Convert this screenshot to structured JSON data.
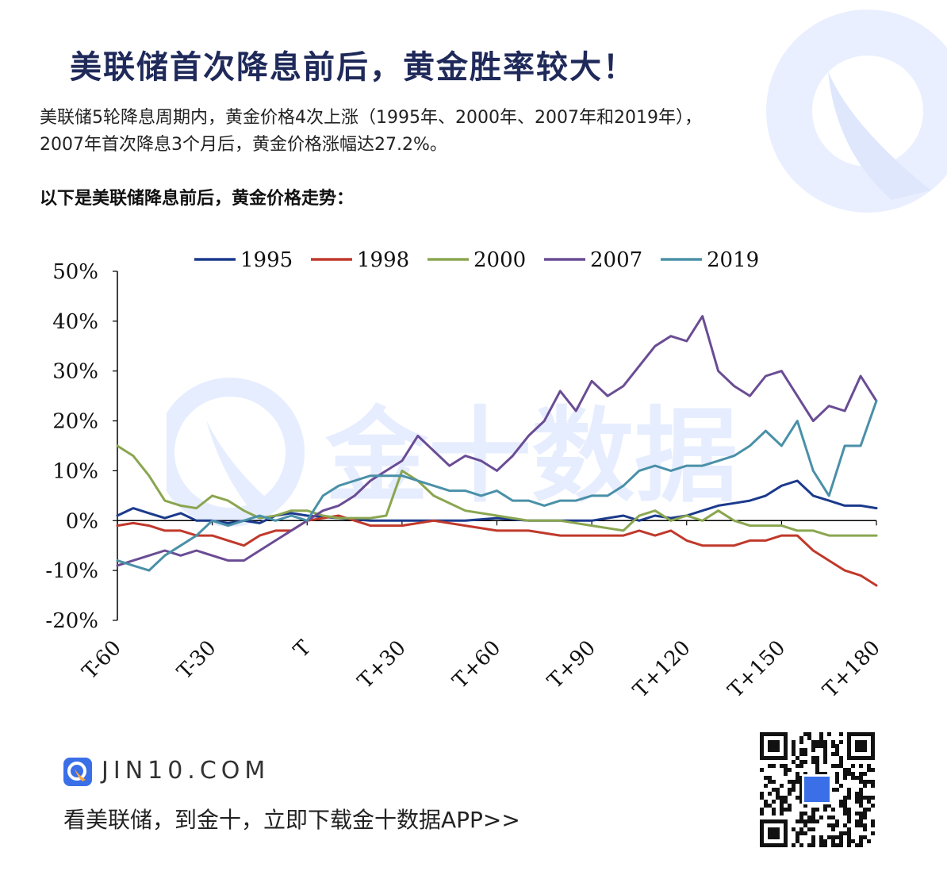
{
  "header": {
    "title": "美联储首次降息前后，黄金胜率较大！",
    "desc_line1": "美联储5轮降息周期内，黄金价格4次上涨（1995年、2000年、2007年和2019年），",
    "desc_line2": "2007年首次降息3个月后，黄金价格涨幅达27.2%。",
    "subhead": "以下是美联储降息前后，黄金价格走势："
  },
  "watermark_text": "金十数据",
  "footer": {
    "site": "JIN10.COM",
    "cta": "看美联储，到金十，立即下载金十数据APP>>"
  },
  "colors": {
    "title": "#1f2a5a",
    "brand_blue": "#3a6fe8",
    "watermark": "#e6edff"
  },
  "chart_data": {
    "type": "line",
    "title": "",
    "xlabel": "",
    "ylabel": "",
    "x_ticks": [
      "T-60",
      "T-30",
      "T",
      "T+30",
      "T+60",
      "T+90",
      "T+120",
      "T+150",
      "T+180"
    ],
    "x_tick_values": [
      -60,
      -30,
      0,
      30,
      60,
      90,
      120,
      150,
      180
    ],
    "xlim": [
      -60,
      180
    ],
    "ylim": [
      -20,
      50
    ],
    "y_ticks": [
      "50%",
      "40%",
      "30%",
      "20%",
      "10%",
      "0%",
      "-10%",
      "-20%"
    ],
    "y_tick_values": [
      50,
      40,
      30,
      20,
      10,
      0,
      -10,
      -20
    ],
    "legend_position": "top",
    "grid": false,
    "series": [
      {
        "name": "1995",
        "color": "#1b3a8c",
        "x": [
          -60,
          -55,
          -50,
          -45,
          -40,
          -35,
          -30,
          -25,
          -20,
          -15,
          -10,
          -5,
          0,
          10,
          20,
          30,
          40,
          50,
          60,
          70,
          80,
          90,
          100,
          105,
          110,
          115,
          120,
          125,
          130,
          135,
          140,
          145,
          150,
          155,
          160,
          165,
          170,
          175,
          180
        ],
        "y": [
          1,
          2.5,
          1.5,
          0.5,
          1.5,
          0,
          0,
          -0.5,
          0,
          -0.5,
          1,
          1.5,
          1,
          0.5,
          0,
          0,
          0,
          0,
          0.5,
          0,
          0,
          0,
          1,
          0,
          1,
          0.5,
          1,
          2,
          3,
          3.5,
          4,
          5,
          7,
          8,
          5,
          4,
          3,
          3,
          2.5
        ]
      },
      {
        "name": "1998",
        "color": "#c0392b",
        "x": [
          -60,
          -55,
          -50,
          -45,
          -40,
          -35,
          -30,
          -25,
          -20,
          -15,
          -10,
          -5,
          0,
          5,
          10,
          20,
          30,
          40,
          50,
          60,
          70,
          80,
          90,
          100,
          105,
          110,
          115,
          120,
          125,
          130,
          135,
          140,
          145,
          150,
          155,
          160,
          165,
          170,
          175,
          180
        ],
        "y": [
          -1,
          -0.5,
          -1,
          -2,
          -2,
          -3,
          -3,
          -4,
          -5,
          -3,
          -2,
          -2,
          0,
          0.5,
          1,
          -1,
          -1,
          0,
          -1,
          -2,
          -2,
          -3,
          -3,
          -3,
          -2,
          -3,
          -2,
          -4,
          -5,
          -5,
          -5,
          -4,
          -4,
          -3,
          -3,
          -6,
          -8,
          -10,
          -11,
          -13
        ]
      },
      {
        "name": "2000",
        "color": "#8aa650",
        "x": [
          -60,
          -55,
          -50,
          -45,
          -40,
          -35,
          -30,
          -25,
          -20,
          -15,
          -10,
          -5,
          0,
          5,
          10,
          20,
          25,
          30,
          35,
          40,
          50,
          60,
          70,
          80,
          90,
          100,
          105,
          110,
          115,
          120,
          125,
          130,
          135,
          140,
          150,
          155,
          160,
          165,
          170,
          175,
          180
        ],
        "y": [
          15,
          13,
          9,
          4,
          3,
          2.5,
          5,
          4,
          2,
          0.5,
          1,
          2,
          2,
          1,
          0.5,
          0.5,
          1,
          10,
          8,
          5,
          2,
          1,
          0,
          0,
          -1,
          -2,
          1,
          2,
          0,
          1,
          0,
          2,
          0,
          -1,
          -1,
          -2,
          -2,
          -3,
          -3,
          -3,
          -3
        ]
      },
      {
        "name": "2007",
        "color": "#6a4c94",
        "x": [
          -60,
          -55,
          -50,
          -45,
          -40,
          -35,
          -30,
          -25,
          -20,
          -15,
          -10,
          -5,
          0,
          5,
          10,
          15,
          20,
          25,
          30,
          35,
          40,
          45,
          50,
          55,
          60,
          65,
          70,
          75,
          80,
          85,
          90,
          95,
          100,
          105,
          110,
          115,
          120,
          125,
          130,
          135,
          140,
          145,
          150,
          155,
          160,
          165,
          170,
          175,
          180
        ],
        "y": [
          -9,
          -8,
          -7,
          -6,
          -7,
          -6,
          -7,
          -8,
          -8,
          -6,
          -4,
          -2,
          0,
          2,
          3,
          5,
          8,
          10,
          12,
          17,
          14,
          11,
          13,
          12,
          10,
          13,
          17,
          20,
          26,
          22,
          28,
          25,
          27,
          31,
          35,
          37,
          36,
          41,
          30,
          27,
          25,
          29,
          30,
          25,
          20,
          23,
          22,
          29,
          24
        ]
      },
      {
        "name": "2019",
        "color": "#4a90a8",
        "x": [
          -60,
          -55,
          -50,
          -45,
          -40,
          -35,
          -30,
          -25,
          -20,
          -15,
          -10,
          -5,
          0,
          5,
          10,
          15,
          20,
          25,
          30,
          35,
          40,
          45,
          50,
          55,
          60,
          65,
          70,
          75,
          80,
          85,
          90,
          95,
          100,
          105,
          110,
          115,
          120,
          125,
          130,
          135,
          140,
          145,
          150,
          155,
          160,
          165,
          170,
          175,
          180
        ],
        "y": [
          -8,
          -9,
          -10,
          -7,
          -5,
          -3,
          0,
          -1,
          0,
          1,
          0,
          1,
          0,
          5,
          7,
          8,
          9,
          9,
          9,
          8,
          7,
          6,
          6,
          5,
          6,
          4,
          4,
          3,
          4,
          4,
          5,
          5,
          7,
          10,
          11,
          10,
          11,
          11,
          12,
          13,
          15,
          18,
          15,
          20,
          10,
          5,
          15,
          15,
          24
        ]
      }
    ]
  }
}
